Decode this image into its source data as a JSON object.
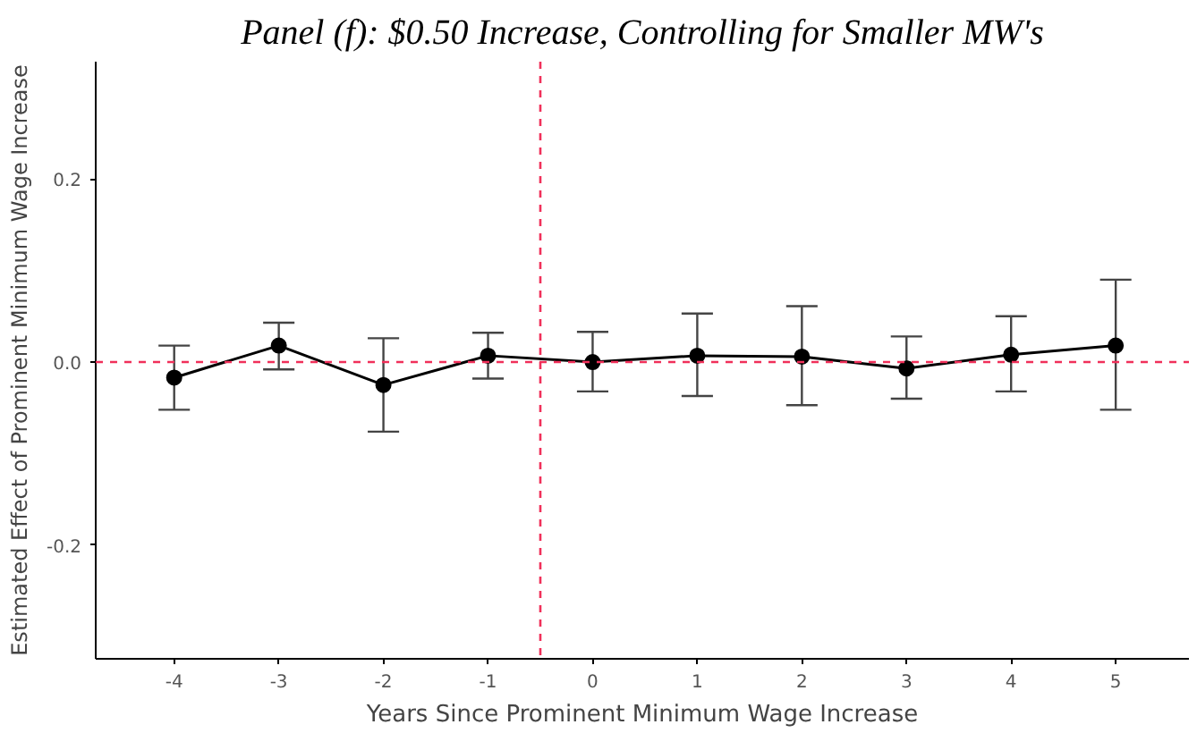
{
  "chart_data": {
    "type": "line",
    "title": "Panel (f): $0.50 Increase, Controlling for Smaller MW's",
    "xlabel": "Years Since Prominent Minimum Wage Increase",
    "ylabel": "Estimated Effect of Prominent Minimum Wage Increase",
    "x": [
      -4,
      -3,
      -2,
      -1,
      0,
      1,
      2,
      3,
      4,
      5
    ],
    "series": [
      {
        "color": "#000000",
        "values": [
          -0.017,
          0.018,
          -0.025,
          0.007,
          0.0,
          0.007,
          0.006,
          -0.007,
          0.008,
          0.018
        ],
        "errors": [
          [
            -0.052,
            0.018
          ],
          [
            -0.008,
            0.043
          ],
          [
            -0.076,
            0.026
          ],
          [
            -0.018,
            0.032
          ],
          [
            -0.032,
            0.033
          ],
          [
            -0.037,
            0.053
          ],
          [
            -0.047,
            0.061
          ],
          [
            -0.04,
            0.028
          ],
          [
            -0.032,
            0.05
          ],
          [
            -0.052,
            0.09
          ]
        ]
      }
    ],
    "marker": "circle",
    "line_style": "solid",
    "grid": false,
    "xlim": [
      -4.75,
      5.7
    ],
    "ylim": [
      -0.324,
      0.328
    ],
    "xticks": [
      -4,
      -3,
      -2,
      -1,
      0,
      1,
      2,
      3,
      4,
      5
    ],
    "yticks": [
      {
        "value": -0.2,
        "label": "-0.2"
      },
      {
        "value": 0,
        "label": "0.0"
      },
      {
        "value": 0.2,
        "label": "0.2"
      }
    ],
    "ref_lines": [
      {
        "axis": "y",
        "value": 0,
        "color": "#f0305a",
        "line_style": "dashed"
      },
      {
        "axis": "x",
        "value": -0.5,
        "color": "#f0305a",
        "line_style": "dashed"
      }
    ]
  }
}
